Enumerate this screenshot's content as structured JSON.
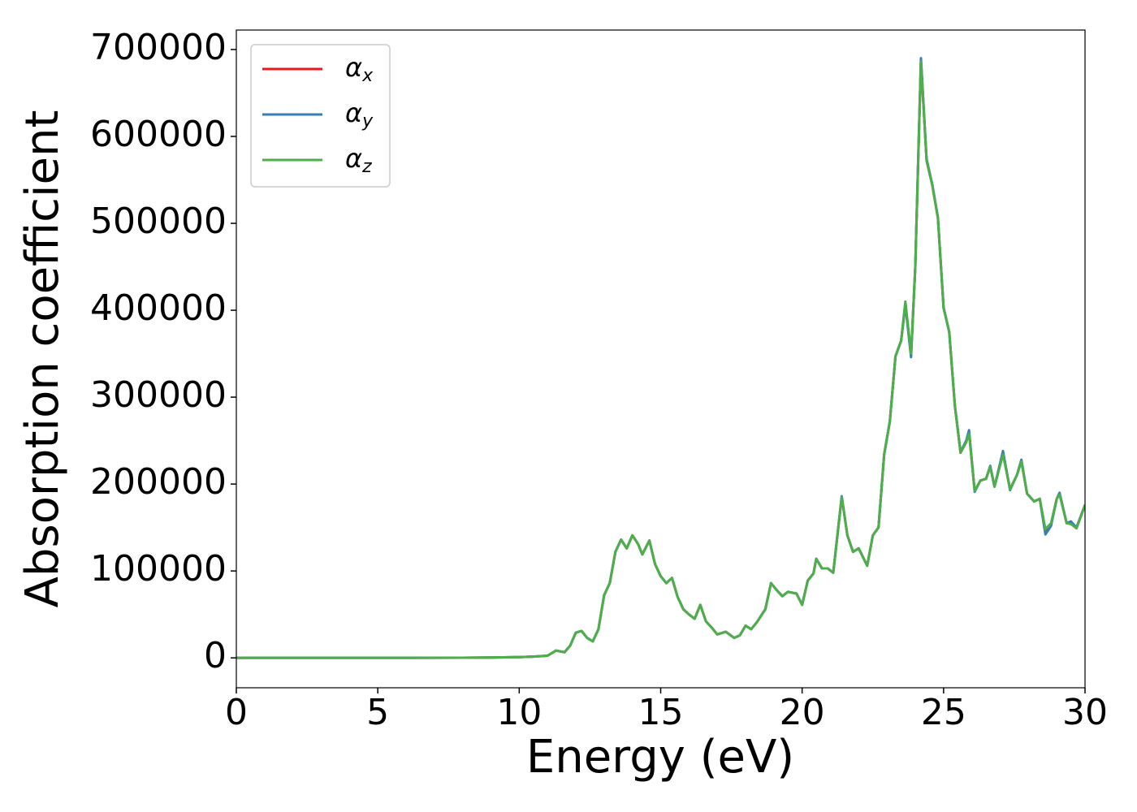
{
  "chart_data": {
    "type": "line",
    "xlabel": "Energy (eV)",
    "ylabel": "Absorption coefficient",
    "x": [
      0,
      5,
      8,
      9,
      10,
      10.5,
      11,
      11.3,
      11.6,
      11.8,
      12.0,
      12.2,
      12.4,
      12.6,
      12.8,
      13.0,
      13.2,
      13.4,
      13.6,
      13.8,
      14.0,
      14.2,
      14.35,
      14.6,
      14.8,
      15.0,
      15.2,
      15.4,
      15.6,
      15.8,
      16.0,
      16.2,
      16.4,
      16.6,
      16.8,
      17.0,
      17.3,
      17.6,
      17.8,
      18.0,
      18.2,
      18.4,
      18.7,
      18.9,
      19.1,
      19.3,
      19.5,
      19.8,
      20.0,
      20.2,
      20.4,
      20.5,
      20.7,
      20.9,
      21.1,
      21.4,
      21.6,
      21.8,
      22.0,
      22.3,
      22.5,
      22.7,
      22.9,
      23.1,
      23.3,
      23.5,
      23.65,
      23.85,
      24.0,
      24.2,
      24.4,
      24.6,
      24.8,
      25.0,
      25.2,
      25.4,
      25.6,
      25.8,
      25.9,
      26.1,
      26.3,
      26.5,
      26.65,
      26.8,
      27.1,
      27.35,
      27.6,
      27.75,
      27.95,
      28.2,
      28.4,
      28.6,
      28.8,
      29.0,
      29.1,
      29.35,
      29.5,
      29.7,
      30
    ],
    "series": [
      {
        "name": "αx",
        "color": "#e41a1c",
        "values": [
          0,
          0,
          200,
          400,
          900,
          1500,
          2500,
          8400,
          6500,
          14000,
          29000,
          31000,
          23000,
          19000,
          33000,
          72000,
          86000,
          122000,
          136000,
          126000,
          141000,
          131000,
          119000,
          135000,
          108000,
          94000,
          86000,
          92000,
          70000,
          56000,
          50000,
          45000,
          61000,
          42000,
          35000,
          27000,
          30000,
          23000,
          26000,
          37000,
          33000,
          41000,
          56000,
          86000,
          78000,
          71000,
          76000,
          74000,
          61000,
          89000,
          97000,
          114000,
          103000,
          103000,
          98000,
          185000,
          141000,
          122000,
          126000,
          106000,
          141000,
          150000,
          234000,
          272000,
          347000,
          365000,
          408000,
          348000,
          450000,
          688000,
          572000,
          544000,
          506000,
          403000,
          375000,
          290000,
          236000,
          249000,
          260000,
          192000,
          204000,
          206000,
          220000,
          197000,
          236000,
          194000,
          211000,
          227000,
          189000,
          180000,
          183000,
          145000,
          154000,
          183000,
          189000,
          155000,
          155000,
          150000,
          176000
        ]
      },
      {
        "name": "αy",
        "color": "#377eb8",
        "values": [
          0,
          0,
          200,
          400,
          900,
          1500,
          2500,
          8400,
          6500,
          14000,
          29000,
          31000,
          23000,
          19000,
          33000,
          72000,
          86000,
          122000,
          136000,
          126000,
          141000,
          131000,
          119000,
          135000,
          108000,
          94000,
          86000,
          92000,
          70000,
          56000,
          50000,
          45000,
          61000,
          42000,
          35000,
          27000,
          30000,
          23000,
          26000,
          37000,
          33000,
          41000,
          56000,
          86000,
          78000,
          71000,
          76000,
          74000,
          61000,
          89000,
          97000,
          114000,
          103000,
          103000,
          98000,
          186000,
          141000,
          122000,
          126000,
          106000,
          141000,
          150000,
          234000,
          272000,
          347000,
          365000,
          406000,
          346000,
          450000,
          690000,
          574000,
          545000,
          507000,
          403000,
          375000,
          290000,
          237000,
          250000,
          262000,
          191000,
          204000,
          206000,
          221000,
          197000,
          238000,
          193000,
          211000,
          228000,
          189000,
          180000,
          183000,
          142000,
          152000,
          183000,
          190000,
          155000,
          157000,
          150000,
          176000
        ]
      },
      {
        "name": "αz",
        "color": "#4daf4a",
        "values": [
          0,
          0,
          200,
          400,
          900,
          1500,
          2500,
          8400,
          6500,
          14000,
          29000,
          31000,
          23000,
          19000,
          33000,
          72000,
          86000,
          122000,
          136000,
          126000,
          141000,
          131000,
          119000,
          135000,
          108000,
          94000,
          86000,
          92000,
          70000,
          56000,
          50000,
          45000,
          61000,
          42000,
          35000,
          27000,
          30000,
          23000,
          26000,
          37000,
          33000,
          41000,
          56000,
          86000,
          78000,
          71000,
          76000,
          74000,
          61000,
          89000,
          97000,
          114000,
          103000,
          103000,
          98000,
          185000,
          141000,
          122000,
          126000,
          106000,
          141000,
          150000,
          234000,
          272000,
          347000,
          365000,
          410000,
          350000,
          450000,
          686000,
          572000,
          544000,
          506000,
          403000,
          375000,
          290000,
          236000,
          248000,
          258000,
          192000,
          204000,
          206000,
          220000,
          197000,
          234000,
          194000,
          211000,
          226000,
          189000,
          180000,
          183000,
          148000,
          155000,
          183000,
          188000,
          155000,
          154000,
          149000,
          176000
        ]
      }
    ],
    "xlim": [
      0,
      30
    ],
    "xticks": [
      0,
      5,
      10,
      15,
      20,
      25,
      30
    ],
    "ylim": [
      -34400,
      722400
    ],
    "yticks": [
      0,
      100000,
      200000,
      300000,
      400000,
      500000,
      600000,
      700000
    ],
    "grid": false,
    "legend": "upper left"
  }
}
